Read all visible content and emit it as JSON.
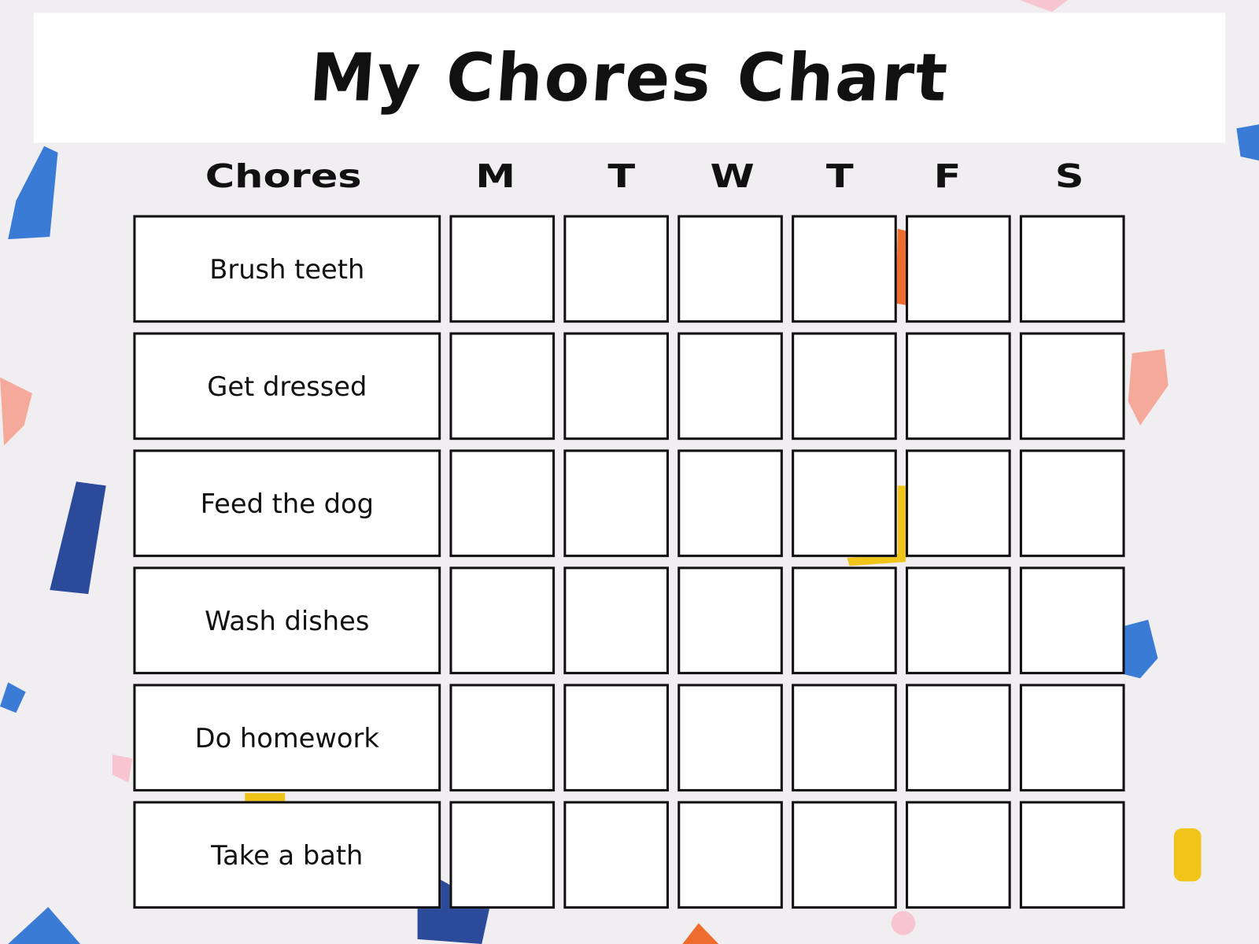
{
  "title": "My Chores Chart",
  "header": {
    "chores_label": "Chores",
    "days": [
      "M",
      "T",
      "W",
      "T",
      "F",
      "S"
    ]
  },
  "chores": [
    "Brush teeth",
    "Get dressed",
    "Feed the dog",
    "Wash dishes",
    "Do homework",
    "Take a bath"
  ],
  "colors": {
    "background": "#f1eef2",
    "confetti": [
      "#3a7bd5",
      "#2b4a9a",
      "#f5a99a",
      "#f0c419",
      "#ef6c2f",
      "#f7c5d0"
    ]
  }
}
